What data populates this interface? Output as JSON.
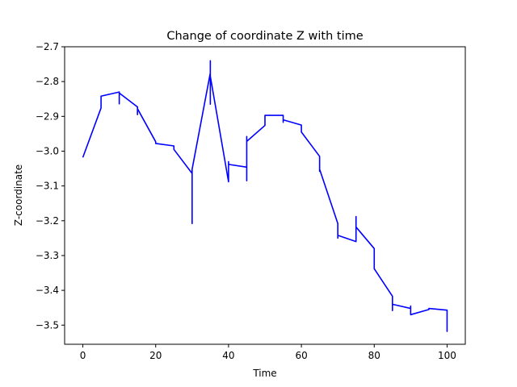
{
  "chart_data": {
    "type": "line",
    "title": "Change of coordinate Z with time",
    "xlabel": "Time",
    "ylabel": "Z-coordinate",
    "xlim": [
      -5,
      105
    ],
    "ylim": [
      -3.555,
      -2.7
    ],
    "xticks": [
      0,
      20,
      40,
      60,
      80,
      100
    ],
    "yticks": [
      -2.7,
      -2.8,
      -2.9,
      -3.0,
      -3.1,
      -3.2,
      -3.3,
      -3.4,
      -3.5
    ],
    "xtick_labels": [
      "0",
      "20",
      "40",
      "60",
      "80",
      "100"
    ],
    "ytick_labels": [
      "−2.7",
      "−2.8",
      "−2.9",
      "−3.0",
      "−3.1",
      "−3.2",
      "−3.3",
      "−3.4",
      "−3.5"
    ],
    "grid": false,
    "series": [
      {
        "color": "#0000ff",
        "x": [
          0,
          5,
          5,
          5,
          10,
          10,
          10,
          15,
          15,
          15,
          20,
          20,
          25,
          25,
          30,
          30,
          30,
          35,
          35,
          35,
          35,
          40,
          40,
          40,
          45,
          45,
          45,
          45,
          50,
          50,
          55,
          55,
          55,
          60,
          60,
          65,
          65,
          65,
          70,
          70,
          70,
          75,
          75,
          75,
          80,
          80,
          85,
          85,
          85,
          90,
          90,
          90,
          95,
          95,
          100,
          100,
          100
        ],
        "y": [
          -3.018,
          -2.876,
          -2.862,
          -2.842,
          -2.83,
          -2.864,
          -2.833,
          -2.873,
          -2.895,
          -2.878,
          -2.973,
          -2.978,
          -2.985,
          -2.995,
          -3.064,
          -3.208,
          -3.052,
          -2.775,
          -2.74,
          -2.865,
          -2.785,
          -3.088,
          -3.03,
          -3.038,
          -3.046,
          -3.085,
          -2.958,
          -2.972,
          -2.926,
          -2.897,
          -2.897,
          -2.917,
          -2.91,
          -2.925,
          -2.945,
          -3.015,
          -3.058,
          -3.052,
          -3.208,
          -3.25,
          -3.242,
          -3.26,
          -3.188,
          -3.218,
          -3.28,
          -3.338,
          -3.417,
          -3.458,
          -3.44,
          -3.452,
          -3.445,
          -3.47,
          -3.455,
          -3.452,
          -3.457,
          -3.518,
          -3.508
        ]
      }
    ]
  }
}
